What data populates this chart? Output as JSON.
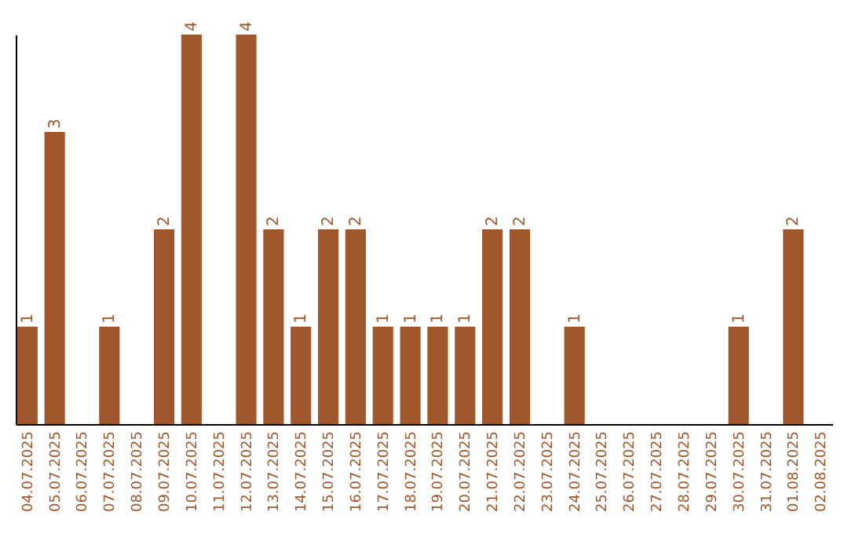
{
  "chart_data": {
    "type": "bar",
    "categories": [
      "04.07.2025",
      "05.07.2025",
      "06.07.2025",
      "07.07.2025",
      "08.07.2025",
      "09.07.2025",
      "10.07.2025",
      "11.07.2025",
      "12.07.2025",
      "13.07.2025",
      "14.07.2025",
      "15.07.2025",
      "16.07.2025",
      "17.07.2025",
      "18.07.2025",
      "19.07.2025",
      "20.07.2025",
      "21.07.2025",
      "22.07.2025",
      "23.07.2025",
      "24.07.2025",
      "25.07.2025",
      "26.07.2025",
      "27.07.2025",
      "28.07.2025",
      "29.07.2025",
      "30.07.2025",
      "31.07.2025",
      "01.08.2025",
      "02.08.2025"
    ],
    "values": [
      1,
      3,
      0,
      1,
      0,
      2,
      4,
      0,
      4,
      2,
      1,
      2,
      2,
      1,
      1,
      1,
      1,
      2,
      2,
      0,
      1,
      0,
      0,
      0,
      0,
      0,
      1,
      0,
      2,
      0
    ],
    "value_labels": [
      "1",
      "3",
      null,
      "1",
      null,
      "2",
      "4",
      null,
      "4",
      "2",
      "1",
      "2",
      "2",
      "1",
      "1",
      "1",
      "1",
      "2",
      "2",
      null,
      "1",
      null,
      null,
      null,
      null,
      null,
      "1",
      null,
      "2",
      null
    ],
    "color": "#a0572b",
    "tick_labels": "x",
    "grid": false
  }
}
